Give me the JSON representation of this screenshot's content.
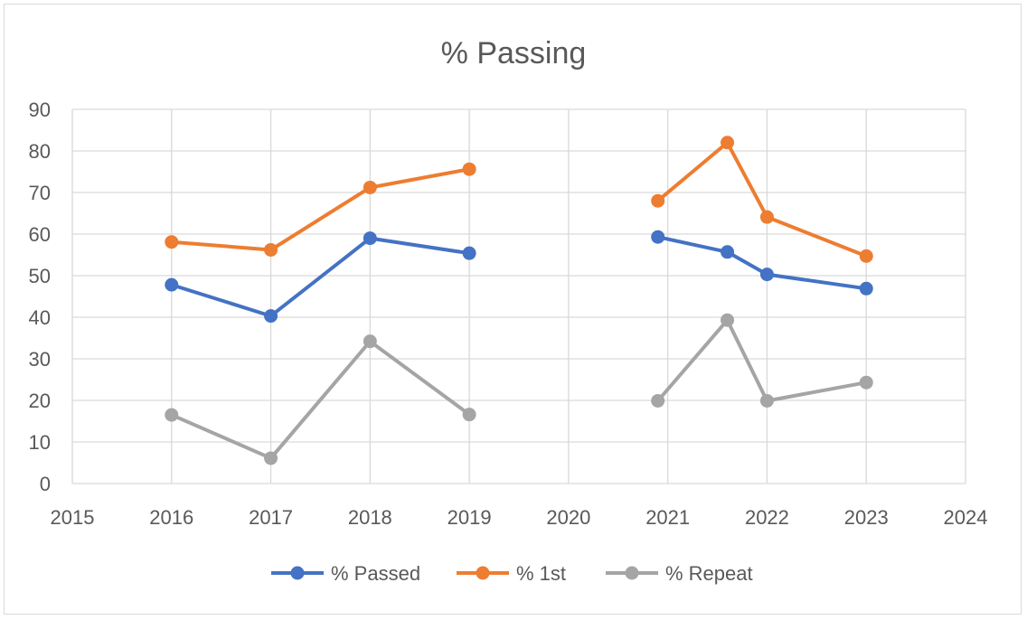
{
  "chart_data": {
    "type": "line",
    "title": "% Passing",
    "xlabel": "",
    "ylabel": "",
    "xlim": [
      2015,
      2024
    ],
    "ylim": [
      0,
      90
    ],
    "xticks": [
      2015,
      2016,
      2017,
      2018,
      2019,
      2020,
      2021,
      2022,
      2023,
      2024
    ],
    "yticks": [
      0,
      10,
      20,
      30,
      40,
      50,
      60,
      70,
      80,
      90
    ],
    "grid": true,
    "legend": "bottom",
    "series": [
      {
        "name": "% Passed",
        "color": "#4472c4",
        "segments": [
          [
            [
              2016,
              47.8
            ],
            [
              2017,
              40.3
            ],
            [
              2018,
              59
            ],
            [
              2019,
              55.4
            ]
          ],
          [
            [
              2020.9,
              59.3
            ],
            [
              2021.6,
              55.7
            ],
            [
              2022,
              50.3
            ],
            [
              2023,
              46.9
            ]
          ]
        ]
      },
      {
        "name": "% 1st",
        "color": "#ed7d31",
        "segments": [
          [
            [
              2016,
              58.1
            ],
            [
              2017,
              56.2
            ],
            [
              2018,
              71.2
            ],
            [
              2019,
              75.6
            ]
          ],
          [
            [
              2020.9,
              68
            ],
            [
              2021.6,
              82
            ],
            [
              2022,
              64.1
            ],
            [
              2023,
              54.7
            ]
          ]
        ]
      },
      {
        "name": "% Repeat",
        "color": "#a5a5a5",
        "segments": [
          [
            [
              2016,
              16.5
            ],
            [
              2017,
              6.1
            ],
            [
              2018,
              34.2
            ],
            [
              2019,
              16.6
            ]
          ],
          [
            [
              2020.9,
              19.9
            ],
            [
              2021.6,
              39.3
            ],
            [
              2022,
              19.9
            ],
            [
              2023,
              24.3
            ]
          ]
        ]
      }
    ]
  }
}
